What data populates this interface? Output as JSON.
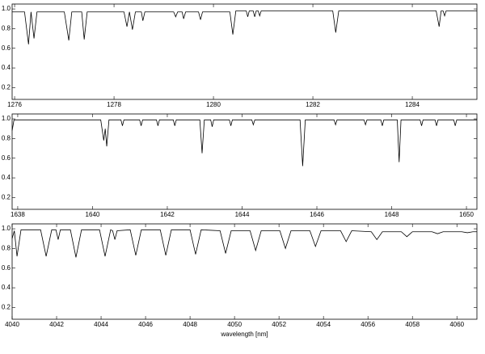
{
  "chart_data": [
    {
      "type": "line",
      "x": [
        1275.95,
        1276.2,
        1276.28,
        1276.33,
        1276.39,
        1276.45,
        1277.0,
        1277.09,
        1277.15,
        1277.35,
        1277.4,
        1277.46,
        1278.2,
        1278.26,
        1278.31,
        1278.37,
        1278.43,
        1278.55,
        1278.58,
        1278.62,
        1279.2,
        1279.24,
        1279.28,
        1279.37,
        1279.4,
        1279.44,
        1279.7,
        1279.74,
        1279.78,
        1280.33,
        1280.39,
        1280.45,
        1280.66,
        1280.69,
        1280.72,
        1280.8,
        1280.83,
        1280.86,
        1280.9,
        1280.93,
        1280.96,
        1282.4,
        1282.46,
        1282.52,
        1284.48,
        1284.54,
        1284.58,
        1284.62,
        1284.65,
        1284.68,
        1285.3
      ],
      "values": [
        0.97,
        0.97,
        0.64,
        0.97,
        0.7,
        0.97,
        0.97,
        0.68,
        0.97,
        0.97,
        0.69,
        0.97,
        0.97,
        0.82,
        0.97,
        0.79,
        0.97,
        0.97,
        0.88,
        0.97,
        0.97,
        0.92,
        0.97,
        0.97,
        0.9,
        0.97,
        0.97,
        0.89,
        0.97,
        0.97,
        0.74,
        0.98,
        0.98,
        0.92,
        0.98,
        0.98,
        0.92,
        0.98,
        0.98,
        0.93,
        0.98,
        0.98,
        0.76,
        0.98,
        0.98,
        0.82,
        0.98,
        0.98,
        0.93,
        0.98,
        0.98
      ],
      "color": "#000000",
      "xlim": [
        1275.95,
        1285.3
      ],
      "xticks": [
        1276,
        1278,
        1280,
        1282,
        1284
      ],
      "ylim": [
        0.08,
        1.05
      ],
      "yticks": [
        0.2,
        0.4,
        0.6,
        0.8,
        {
          "value": 1,
          "label": "1.0"
        }
      ]
    },
    {
      "type": "line",
      "x": [
        1637.85,
        1637.9,
        1640.22,
        1640.3,
        1640.34,
        1640.38,
        1640.44,
        1640.76,
        1640.8,
        1640.84,
        1641.26,
        1641.3,
        1641.34,
        1641.71,
        1641.75,
        1641.79,
        1642.16,
        1642.2,
        1642.24,
        1642.87,
        1642.93,
        1642.99,
        1643.16,
        1643.2,
        1643.24,
        1643.66,
        1643.7,
        1643.74,
        1644.26,
        1644.3,
        1644.34,
        1645.55,
        1645.62,
        1645.69,
        1646.46,
        1646.5,
        1646.54,
        1647.26,
        1647.3,
        1647.34,
        1647.71,
        1647.75,
        1647.79,
        1648.15,
        1648.2,
        1648.25,
        1648.76,
        1648.8,
        1648.84,
        1649.16,
        1649.2,
        1649.24,
        1649.66,
        1649.7,
        1649.74,
        1650.28
      ],
      "values": [
        0.88,
        0.99,
        0.99,
        0.78,
        0.9,
        0.72,
        0.99,
        0.99,
        0.93,
        0.99,
        0.99,
        0.93,
        0.99,
        0.99,
        0.93,
        0.99,
        0.99,
        0.93,
        0.99,
        0.99,
        0.65,
        0.99,
        0.99,
        0.92,
        0.99,
        0.99,
        0.93,
        0.99,
        0.99,
        0.94,
        0.99,
        0.99,
        0.52,
        0.99,
        0.99,
        0.94,
        0.99,
        0.99,
        0.94,
        0.99,
        0.99,
        0.93,
        0.99,
        0.99,
        0.56,
        0.99,
        0.99,
        0.93,
        0.99,
        0.99,
        0.93,
        0.99,
        0.99,
        0.93,
        0.99,
        0.99
      ],
      "color": "#000000",
      "xlim": [
        1637.85,
        1650.28
      ],
      "xticks": [
        1638,
        1640,
        1642,
        1644,
        1646,
        1648,
        1650
      ],
      "ylim": [
        0.08,
        1.05
      ],
      "yticks": [
        0.2,
        0.4,
        0.6,
        0.8,
        {
          "value": 1,
          "label": "1.0"
        }
      ]
    },
    {
      "type": "line",
      "x": [
        4040,
        4040.1,
        4040.22,
        4040.4,
        4041.28,
        4041.53,
        4041.78,
        4041.97,
        4042.07,
        4042.17,
        4042.62,
        4042.87,
        4043.12,
        4043.93,
        4044.18,
        4044.43,
        4044.52,
        4044.62,
        4044.72,
        4045.31,
        4045.56,
        4045.81,
        4046.66,
        4046.91,
        4047.16,
        4048.0,
        4048.25,
        4048.5,
        4049.35,
        4049.6,
        4049.85,
        4050.7,
        4050.95,
        4051.2,
        4052.04,
        4052.29,
        4052.54,
        4053.39,
        4053.64,
        4053.89,
        4054.77,
        4055.02,
        4055.27,
        4056.15,
        4056.4,
        4056.65,
        4057.5,
        4057.75,
        4058.0,
        4058.88,
        4059.13,
        4059.38,
        4060.22,
        4060.47,
        4060.72,
        4060.9
      ],
      "values": [
        0.9,
        0.98,
        0.72,
        0.99,
        0.99,
        0.72,
        0.99,
        0.99,
        0.89,
        0.99,
        0.99,
        0.71,
        0.99,
        0.99,
        0.72,
        0.99,
        0.98,
        0.89,
        0.98,
        0.99,
        0.73,
        0.99,
        0.99,
        0.73,
        0.99,
        0.99,
        0.74,
        0.99,
        0.98,
        0.75,
        0.98,
        0.98,
        0.78,
        0.98,
        0.98,
        0.8,
        0.98,
        0.98,
        0.82,
        0.98,
        0.98,
        0.87,
        0.98,
        0.97,
        0.89,
        0.97,
        0.97,
        0.92,
        0.97,
        0.97,
        0.95,
        0.97,
        0.97,
        0.96,
        0.97,
        0.97
      ],
      "color": "#000000",
      "xlim": [
        4040,
        4060.9
      ],
      "xticks": [
        4040,
        4042,
        4044,
        4046,
        4048,
        4050,
        4052,
        4054,
        4056,
        4058,
        4060
      ],
      "ylim": [
        0.08,
        1.05
      ],
      "yticks": [
        0.2,
        0.4,
        0.6,
        0.8,
        {
          "value": 1,
          "label": "1.0"
        }
      ],
      "xlabel": "wavelength [nm]"
    }
  ]
}
